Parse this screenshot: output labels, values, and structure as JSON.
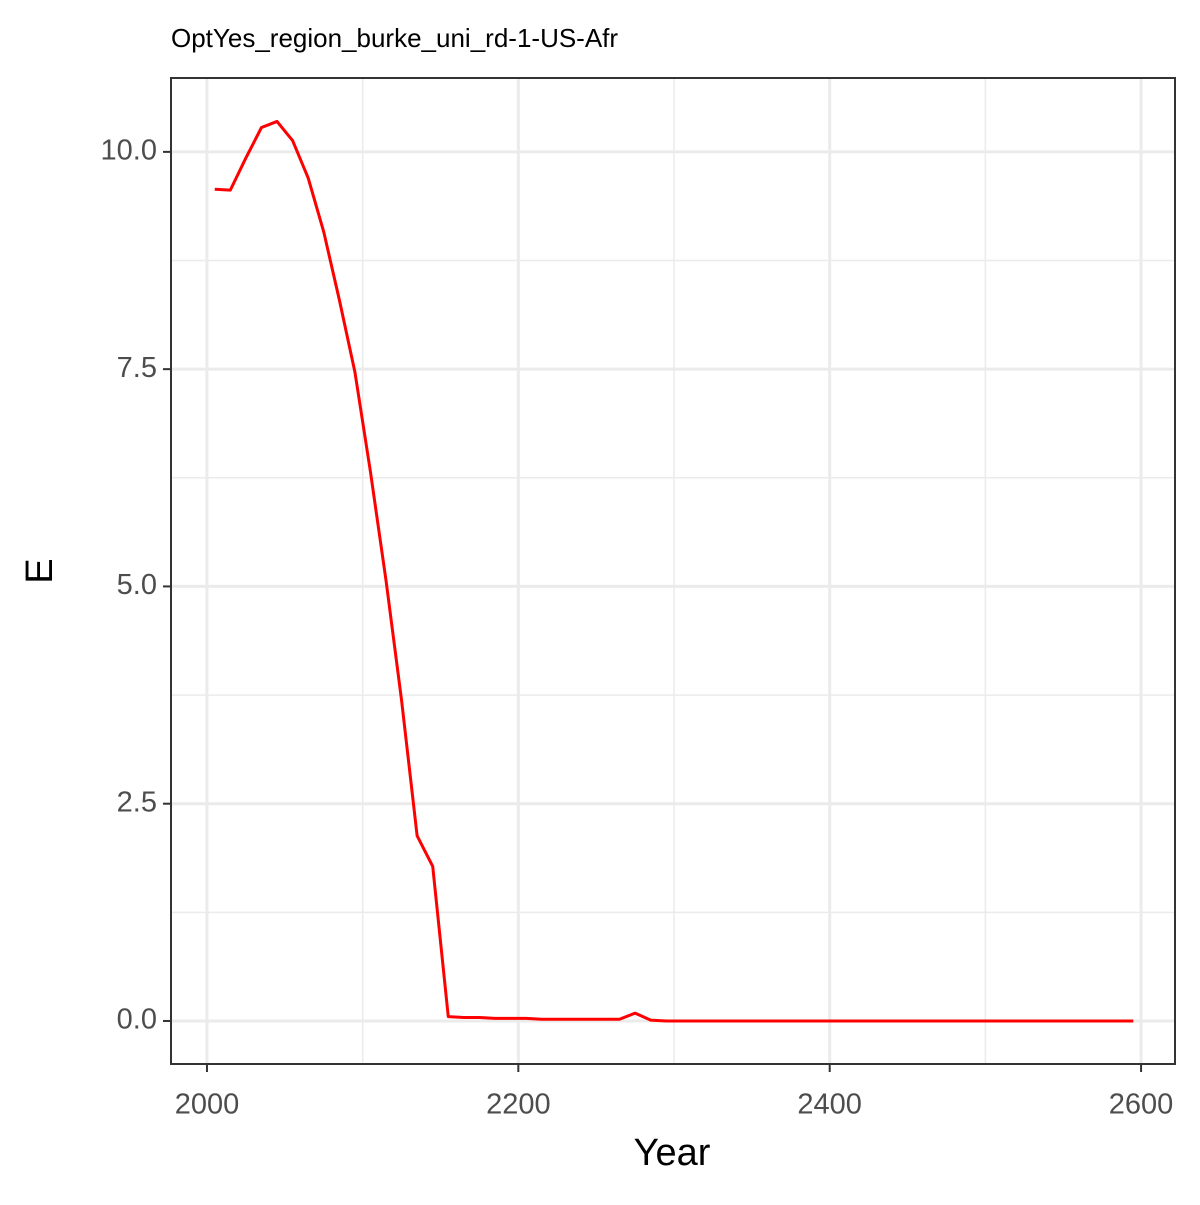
{
  "chart_data": {
    "type": "line",
    "title": "OptYes_region_burke_uni_rd-1-US-Afr",
    "x_label": "Year",
    "y_label": "E",
    "x": [
      2005,
      2015,
      2025,
      2035,
      2045,
      2055,
      2065,
      2075,
      2085,
      2095,
      2105,
      2115,
      2125,
      2135,
      2145,
      2155,
      2165,
      2175,
      2185,
      2195,
      2205,
      2215,
      2225,
      2235,
      2245,
      2255,
      2265,
      2275,
      2285,
      2295,
      2305,
      2315,
      2325,
      2335,
      2345,
      2355,
      2365,
      2375,
      2385,
      2395,
      2405,
      2415,
      2425,
      2435,
      2445,
      2455,
      2465,
      2475,
      2485,
      2495,
      2505,
      2515,
      2525,
      2535,
      2545,
      2555,
      2565,
      2575,
      2585,
      2595
    ],
    "series": [
      {
        "color": "#ff0000",
        "values": [
          9.57,
          9.56,
          9.93,
          10.28,
          10.35,
          10.13,
          9.7,
          9.08,
          8.3,
          7.47,
          6.32,
          5.07,
          3.69,
          2.13,
          1.78,
          0.05,
          0.04,
          0.04,
          0.03,
          0.03,
          0.03,
          0.02,
          0.02,
          0.02,
          0.02,
          0.02,
          0.02,
          0.09,
          0.01,
          0,
          0,
          0,
          0,
          0,
          0,
          0,
          0,
          0,
          0,
          0,
          0,
          0,
          0,
          0,
          0,
          0,
          0,
          0,
          0,
          0,
          0,
          0,
          0,
          0,
          0,
          0,
          0,
          0,
          0,
          0
        ]
      }
    ],
    "xlim": [
      1976.9,
      2621.8
    ],
    "ylim": [
      -0.495,
      10.85
    ],
    "xticks": [
      2000,
      2200,
      2400,
      2600
    ],
    "yticks": [
      {
        "value": 0,
        "label": "0.0"
      },
      2.5,
      {
        "value": 5,
        "label": "5.0"
      },
      7.5,
      {
        "value": 10,
        "label": "10.0"
      }
    ],
    "x_minor_grid": [
      2100,
      2300,
      2500
    ],
    "y_minor_grid": [
      1.25,
      3.75,
      6.25,
      8.75
    ],
    "grid": true
  }
}
